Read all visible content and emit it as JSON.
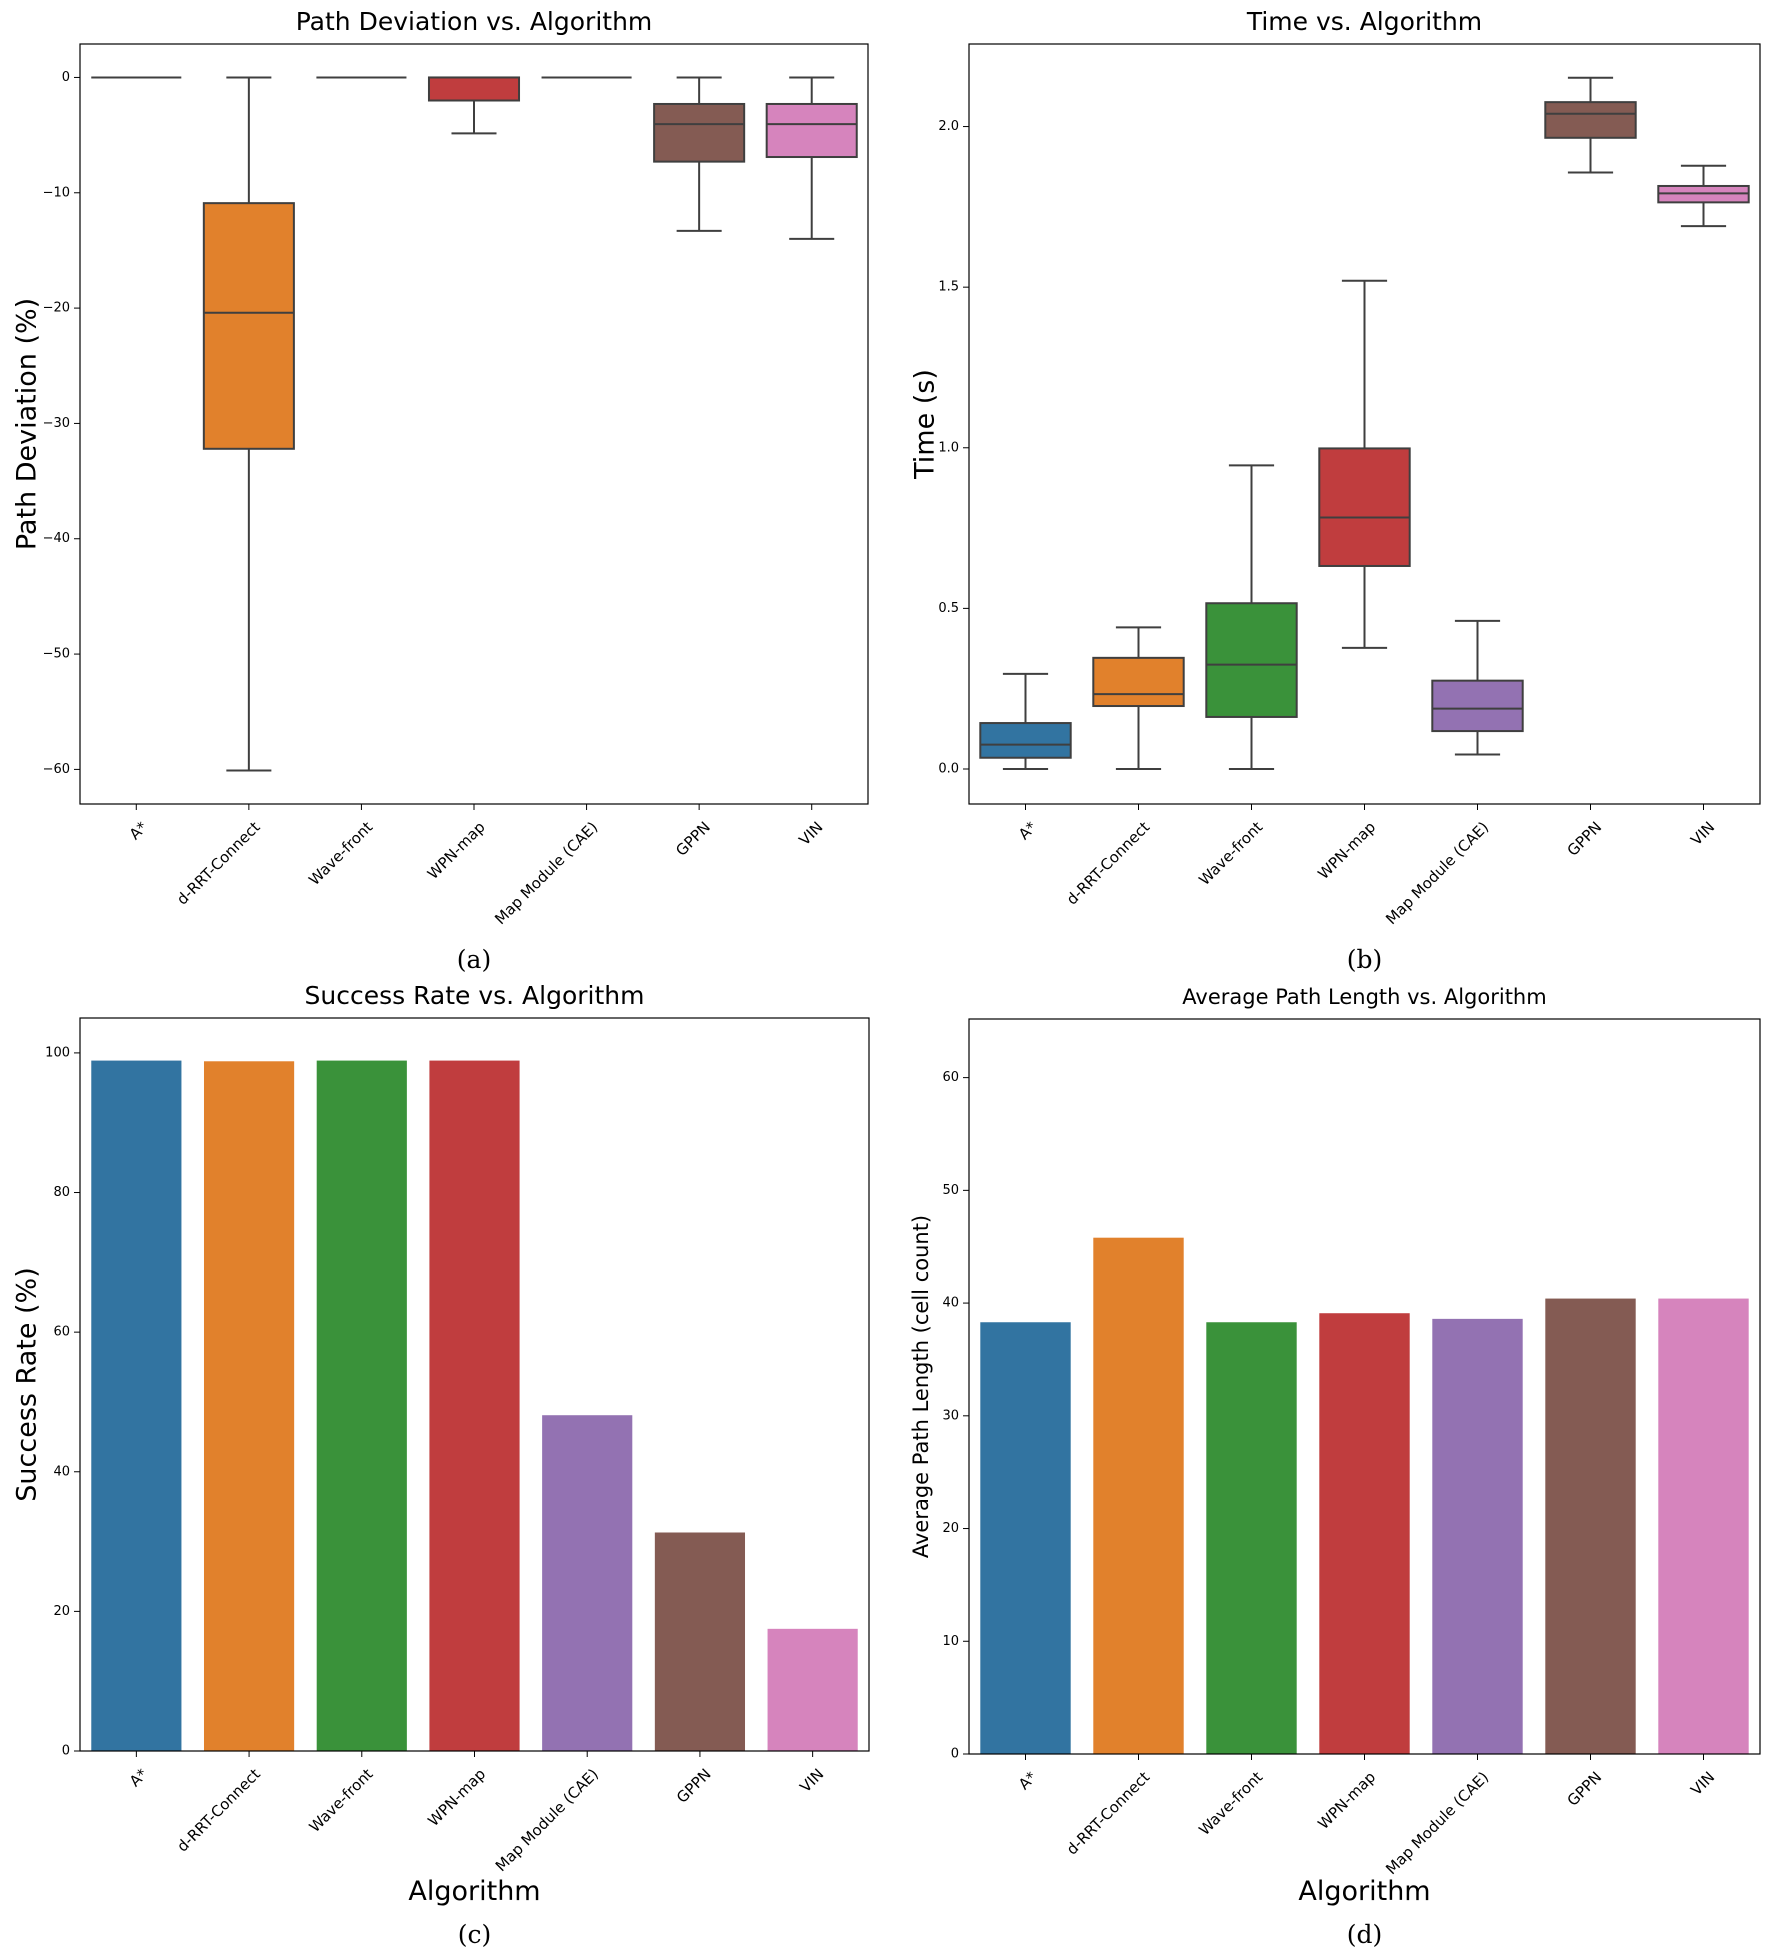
{
  "chart_data": [
    {
      "type": "box",
      "title": "Path Deviation vs. Algorithm",
      "xlabel": "",
      "ylabel": "Path Deviation (%)",
      "caption": "(a)",
      "categories": [
        "A*",
        "d-RRT-Connect",
        "Wave-front",
        "WPN-map",
        "Map Module (CAE)",
        "GPPN",
        "VIN"
      ],
      "ylim": [
        -63,
        2.9
      ],
      "yticks": [
        0,
        -10,
        -20,
        -30,
        -40,
        -50,
        -60
      ],
      "ytick_labels": [
        "0",
        "−10",
        "−20",
        "−30",
        "−40",
        "−50",
        "−60"
      ],
      "boxes": [
        {
          "min": 0,
          "q1": 0,
          "median": 0,
          "q3": 0,
          "max": 0
        },
        {
          "min": -60.1,
          "q1": -32.2,
          "median": -20.4,
          "q3": -10.9,
          "max": 0
        },
        {
          "min": 0,
          "q1": 0,
          "median": 0,
          "q3": 0,
          "max": 0
        },
        {
          "min": -4.85,
          "q1": -2.0,
          "median": 0,
          "q3": 0,
          "max": 0
        },
        {
          "min": 0,
          "q1": 0,
          "median": 0,
          "q3": 0,
          "max": 0
        },
        {
          "min": -13.3,
          "q1": -7.3,
          "median": -4.05,
          "q3": -2.3,
          "max": 0
        },
        {
          "min": -14.0,
          "q1": -6.9,
          "median": -4.05,
          "q3": -2.3,
          "max": 0
        }
      ]
    },
    {
      "type": "box",
      "title": "Time vs. Algorithm",
      "xlabel": "",
      "ylabel": "Time (s)",
      "caption": "(b)",
      "categories": [
        "A*",
        "d-RRT-Connect",
        "Wave-front",
        "WPN-map",
        "Map Module (CAE)",
        "GPPN",
        "VIN"
      ],
      "ylim": [
        -0.109,
        2.257
      ],
      "yticks": [
        0,
        0.5,
        1.0,
        1.5,
        2.0
      ],
      "ytick_labels": [
        "0.0",
        "0.5",
        "1.0",
        "1.5",
        "2.0"
      ],
      "boxes": [
        {
          "min": 0.0,
          "q1": 0.035,
          "median": 0.076,
          "q3": 0.143,
          "max": 0.296
        },
        {
          "min": 0.0,
          "q1": 0.196,
          "median": 0.233,
          "q3": 0.346,
          "max": 0.441
        },
        {
          "min": 0.0,
          "q1": 0.162,
          "median": 0.325,
          "q3": 0.516,
          "max": 0.945
        },
        {
          "min": 0.377,
          "q1": 0.632,
          "median": 0.783,
          "q3": 0.998,
          "max": 1.52
        },
        {
          "min": 0.045,
          "q1": 0.118,
          "median": 0.188,
          "q3": 0.275,
          "max": 0.461
        },
        {
          "min": 1.857,
          "q1": 1.965,
          "median": 2.04,
          "q3": 2.076,
          "max": 2.152
        },
        {
          "min": 1.69,
          "q1": 1.764,
          "median": 1.792,
          "q3": 1.815,
          "max": 1.878
        }
      ]
    },
    {
      "type": "bar",
      "title": "Success Rate vs. Algorithm",
      "xlabel": "Algorithm",
      "ylabel": "Success Rate (%)",
      "caption": "(c)",
      "categories": [
        "A*",
        "d-RRT-Connect",
        "Wave-front",
        "WPN-map",
        "Map Module (CAE)",
        "GPPN",
        "VIN"
      ],
      "values": [
        98.9,
        98.8,
        98.9,
        98.9,
        48.1,
        31.3,
        17.5
      ],
      "ylim": [
        0,
        105
      ],
      "yticks": [
        0,
        20,
        40,
        60,
        80,
        100
      ],
      "ytick_labels": [
        "0",
        "20",
        "40",
        "60",
        "80",
        "100"
      ]
    },
    {
      "type": "bar",
      "title": "Average Path Length vs. Algorithm",
      "xlabel": "Algorithm",
      "ylabel": "Average Path Length (cell count)",
      "caption": "(d)",
      "categories": [
        "A*",
        "d-RRT-Connect",
        "Wave-front",
        "WPN-map",
        "Map Module (CAE)",
        "GPPN",
        "VIN"
      ],
      "values": [
        38.3,
        45.8,
        38.3,
        39.1,
        38.6,
        40.4,
        40.4
      ],
      "ylim": [
        0,
        65.2
      ],
      "yticks": [
        0,
        10,
        20,
        30,
        40,
        50,
        60
      ],
      "ytick_labels": [
        "0",
        "10",
        "20",
        "30",
        "40",
        "50",
        "60"
      ]
    }
  ],
  "colors": [
    "#3274a1",
    "#e1812c",
    "#3a923a",
    "#c03d3e",
    "#9372b2",
    "#845b53",
    "#d684bd"
  ],
  "grid": false,
  "legend": "none"
}
